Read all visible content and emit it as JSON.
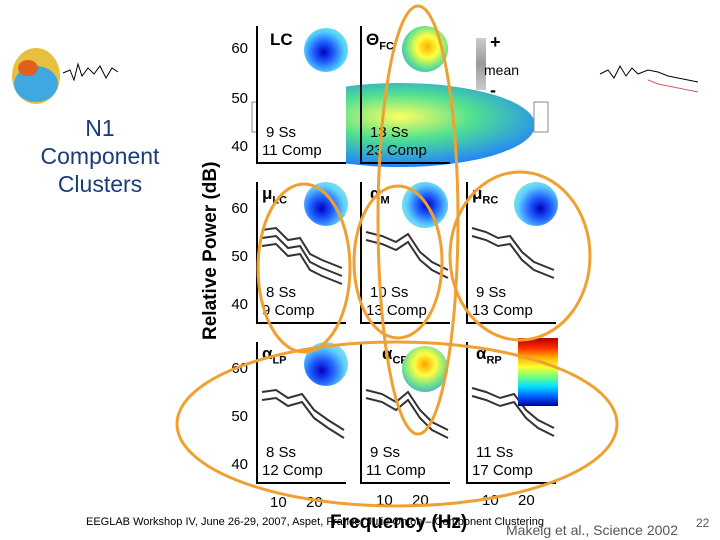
{
  "title": {
    "lines": [
      "N1",
      "Component",
      "Clusters"
    ]
  },
  "y_axis": {
    "label": "Relative Power (dB)",
    "ticks": [
      "60",
      "50",
      "40"
    ]
  },
  "x_axis": {
    "label": "Frequency (Hz)",
    "ticks": [
      "10",
      "20"
    ]
  },
  "legend": {
    "plus": "+",
    "mean": "mean",
    "minus": "-"
  },
  "panels": [
    {
      "label": "LC",
      "sub": "",
      "ss": "9 Ss",
      "comp": "11 Comp"
    },
    {
      "label": "Θ",
      "sub": "FC",
      "ss": "13 Ss",
      "comp": "23 Comp"
    },
    {
      "label": "",
      "sub": "",
      "ss": "",
      "comp": ""
    },
    {
      "label": "μ",
      "sub": "LC",
      "ss": "8 Ss",
      "comp": "9 Comp"
    },
    {
      "label": "α",
      "sub": "M",
      "ss": "10 Ss",
      "comp": "13 Comp"
    },
    {
      "label": "μ",
      "sub": "RC",
      "ss": "9 Ss",
      "comp": "13 Comp"
    },
    {
      "label": "α",
      "sub": "LP",
      "ss": "8 Ss",
      "comp": "12 Comp"
    },
    {
      "label": "α",
      "sub": "CP",
      "ss": "9 Ss",
      "comp": "11 Comp"
    },
    {
      "label": "α",
      "sub": "RP",
      "ss": "11 Ss",
      "comp": "17 Comp"
    }
  ],
  "footer": {
    "text": "EEGLAB Workshop IV, June 26-29, 2007, Aspet, France: Julie Onton – Component Clustering",
    "citation": "Makeig et al., Science 2002",
    "page": "22"
  },
  "colors": {
    "title": "#1a3c7a",
    "circle": "#f0a030",
    "curves": "#333333"
  }
}
